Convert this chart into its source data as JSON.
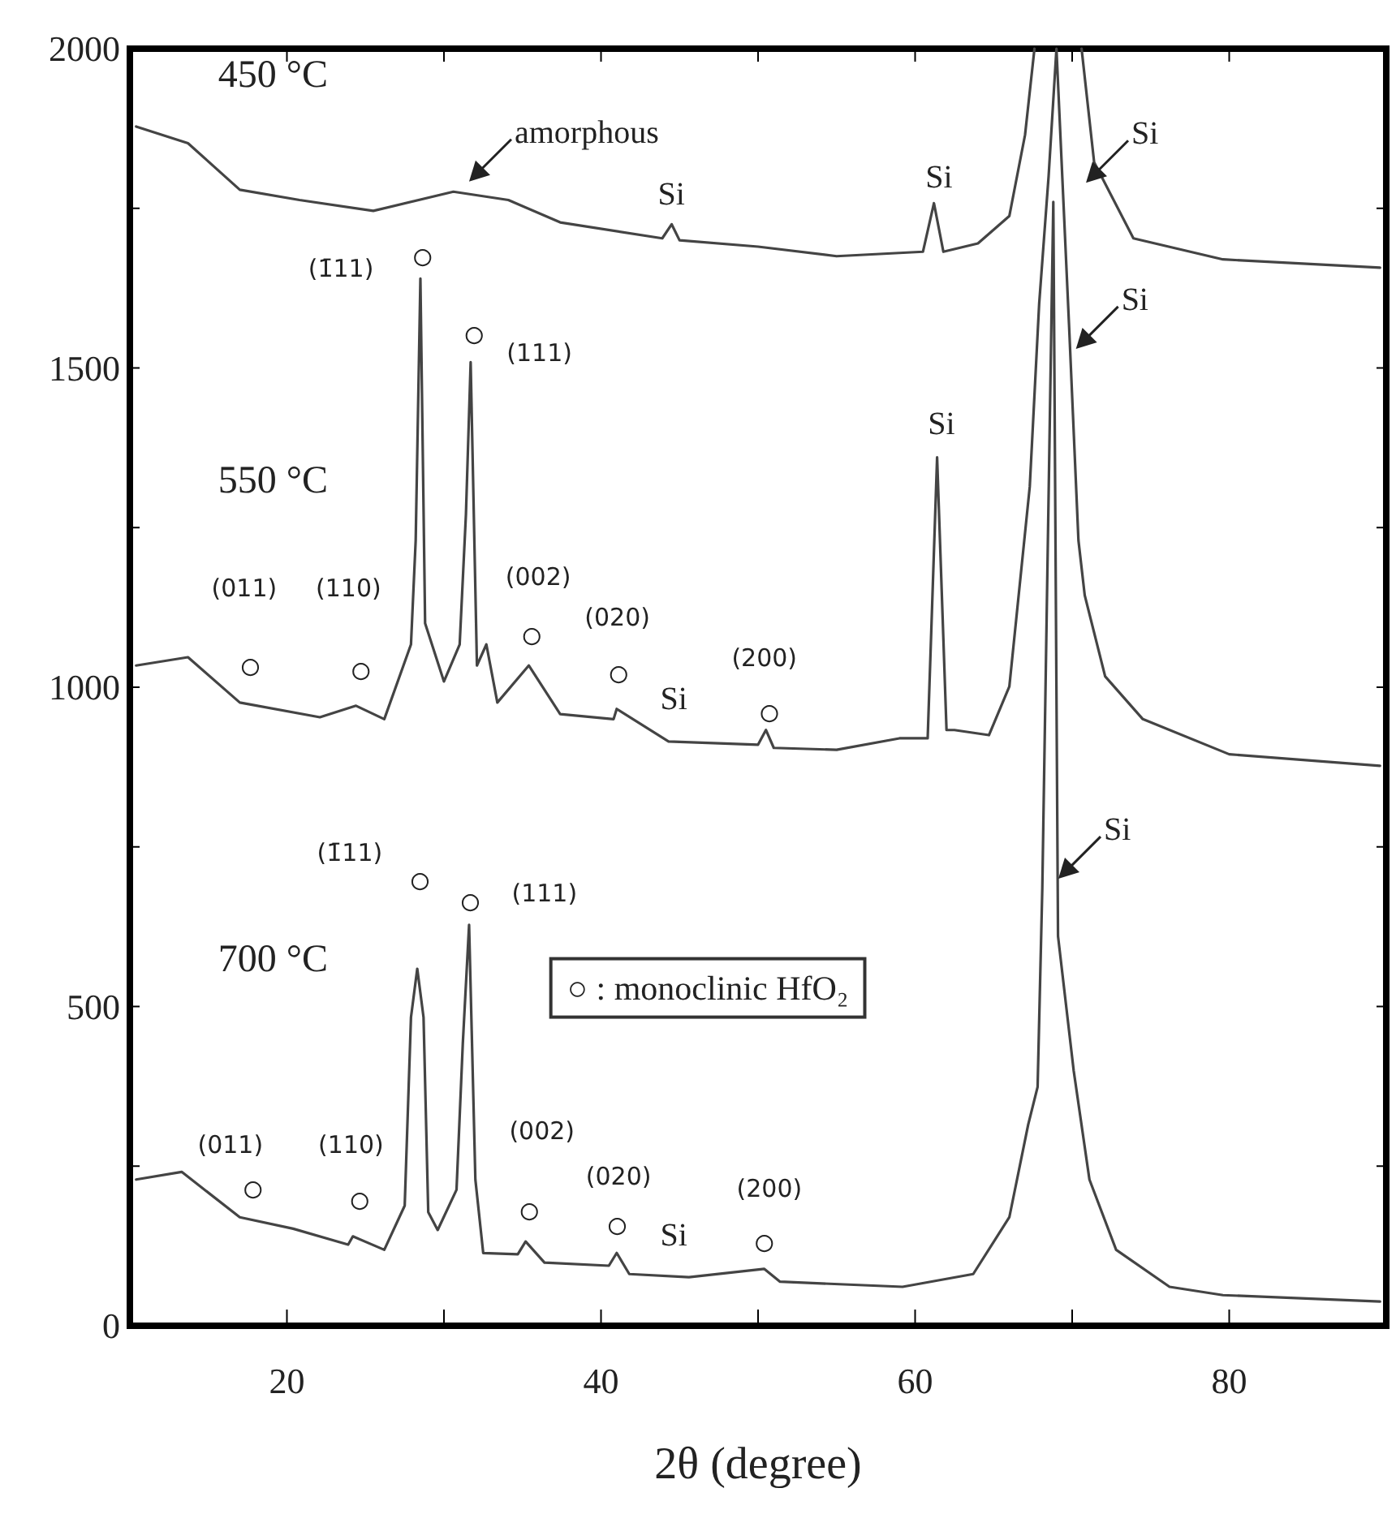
{
  "chart_data": {
    "type": "line",
    "xlabel": "2θ  (degree)",
    "xlim": [
      10,
      90
    ],
    "ylim": [
      0,
      2000
    ],
    "xticks": [
      20,
      {
        "value": 30,
        "label": null
      },
      40,
      {
        "value": 50,
        "label": null
      },
      60,
      {
        "value": 70,
        "label": null
      },
      80
    ],
    "yticks": [
      0,
      {
        "value": 250,
        "label": null
      },
      500,
      {
        "value": 750,
        "label": null
      },
      1000,
      {
        "value": 1250,
        "label": null
      },
      1500,
      {
        "value": 1750,
        "label": null
      },
      2000
    ],
    "grid": false,
    "marker": "none",
    "line_style": "solid",
    "series": [
      {
        "color": "#444444",
        "x": [
          10.4,
          13.7,
          17.0,
          20.8,
          25.5,
          30.6,
          34.1,
          37.4,
          43.9,
          44.5,
          45.0,
          50,
          55,
          60.5,
          61.2,
          61.8,
          64.0,
          66.0,
          67.0,
          67.6,
          null,
          70.6,
          71.4,
          73.9,
          79.6,
          89.6
        ],
        "values": [
          1878,
          1852,
          1779,
          1763,
          1746,
          1776,
          1763,
          1728,
          1703,
          1725,
          1700,
          1690,
          1675,
          1682,
          1758,
          1682,
          1695,
          1738,
          1865,
          2000,
          null,
          2000,
          1822,
          1703,
          1670,
          1657
        ]
      },
      {
        "color": "#444444",
        "x": [
          10.4,
          13.7,
          17.0,
          22.1,
          24.4,
          26.2,
          27.9,
          28.2,
          28.5,
          28.8,
          30.0,
          31.0,
          31.4,
          31.7,
          32.1,
          32.7,
          33.4,
          35.4,
          37.4,
          40.8,
          41.0,
          44.3,
          50.0,
          50.5,
          51.0,
          55,
          59,
          60.8,
          61.4,
          62.0,
          62.5,
          64.7,
          66.0,
          67.3,
          67.9,
          68.5,
          69.0,
          69.8,
          70.4,
          70.8,
          72.1,
          74.5,
          80,
          89.6
        ],
        "values": [
          1034,
          1047,
          976,
          953,
          971,
          950,
          1067,
          1230,
          1640,
          1100,
          1009,
          1067,
          1271,
          1509,
          1034,
          1067,
          976,
          1034,
          958,
          950,
          966,
          915,
          910,
          933,
          905,
          902,
          920,
          920,
          1360,
          933,
          933,
          925,
          1001,
          1314,
          1601,
          1800,
          2000,
          1568,
          1230,
          1144,
          1017,
          950,
          895,
          877
        ]
      },
      {
        "color": "#444444",
        "x": [
          10.4,
          13.3,
          17.0,
          20.4,
          23.9,
          24.2,
          26.2,
          27.5,
          27.9,
          28.3,
          28.7,
          29.0,
          29.6,
          30.8,
          31.2,
          31.6,
          32.0,
          32.5,
          34.7,
          35.2,
          36.4,
          40.5,
          41.0,
          41.8,
          45.6,
          50.4,
          51.4,
          59.2,
          63.7,
          66.0,
          67.2,
          67.8,
          68.1,
          68.8,
          69.1,
          70.1,
          71.1,
          72.8,
          76.2,
          79.6,
          89.6
        ],
        "values": [
          229,
          241,
          170,
          152,
          127,
          140,
          119,
          188,
          483,
          559,
          483,
          178,
          150,
          213,
          442,
          628,
          229,
          114,
          112,
          132,
          99,
          94,
          114,
          81,
          76,
          89,
          69,
          61,
          81,
          170,
          315,
          374,
          686,
          1760,
          610,
          399,
          229,
          119,
          61,
          48,
          38
        ]
      }
    ],
    "annotations": [
      "450 °C",
      "550 °C",
      "700 °C",
      "amorphous",
      "Si",
      "Si",
      "Si",
      "Si",
      "Si",
      "Si",
      "Si",
      "Si",
      "(1̄11)",
      "○",
      "(111)",
      "○",
      "(011)",
      "○",
      "(110)",
      "○",
      "(002)",
      "○",
      "(020)",
      "○",
      "(200)",
      "○",
      "(1̄11)",
      "○",
      "(111)",
      "○",
      "(011)",
      "○",
      "(110)",
      "○",
      "(002)",
      "○",
      "(020)",
      "○",
      "(200)",
      "○",
      "○ : monoclinic HfO₂"
    ]
  }
}
